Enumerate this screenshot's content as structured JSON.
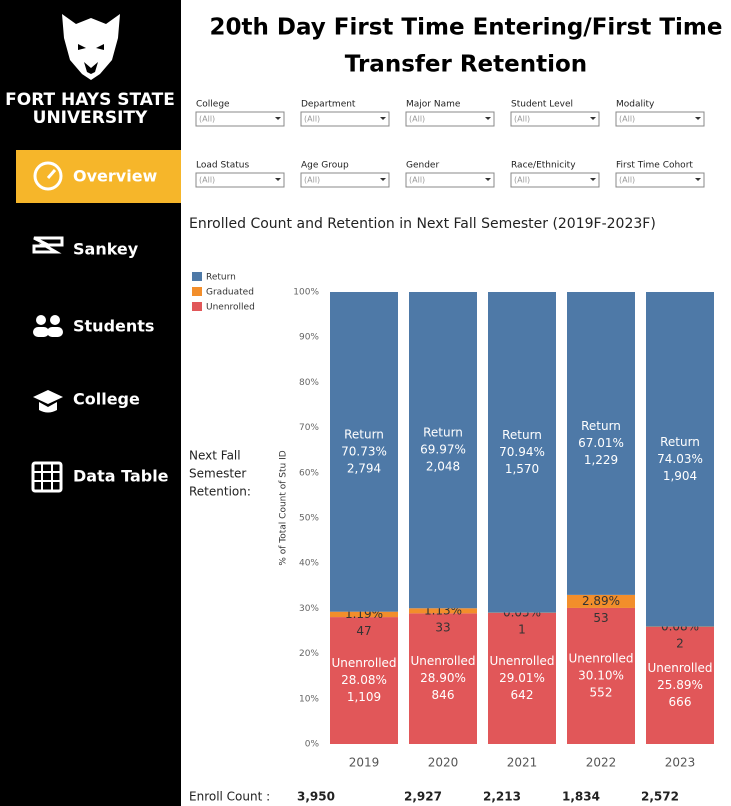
{
  "sidebar": {
    "university": [
      "FORT HAYS STATE",
      "UNIVERSITY"
    ],
    "nav": [
      "Overview",
      "Sankey",
      "Students",
      "College",
      "Data Table"
    ]
  },
  "header": {
    "title": [
      "20th Day First Time Entering/First Time",
      "Transfer Retention"
    ]
  },
  "filters": [
    {
      "label": "College",
      "value": "(All)"
    },
    {
      "label": "Department",
      "value": "(All)"
    },
    {
      "label": "Major Name",
      "value": "(All)"
    },
    {
      "label": "Student Level",
      "value": "(All)"
    },
    {
      "label": "Modality",
      "value": "(All)"
    },
    {
      "label": "Load Status",
      "value": "(All)"
    },
    {
      "label": "Age Group",
      "value": "(All)"
    },
    {
      "label": "Gender",
      "value": "(All)"
    },
    {
      "label": "Race/Ethnicity",
      "value": "(All)"
    },
    {
      "label": "First Time Cohort",
      "value": "(All)"
    }
  ],
  "chart_data": {
    "type": "stacked-bar",
    "title": "Enrolled Count and Retention in Next Fall Semester (2019F-2023F)",
    "row_label": [
      "Next Fall",
      "Semester",
      "Retention:"
    ],
    "y_label": "% of Total Count of Stu ID",
    "categories": [
      "2019",
      "2020",
      "2021",
      "2022",
      "2023"
    ],
    "series": [
      {
        "name": "Unenrolled",
        "color": "#e15759",
        "values": [
          28.08,
          28.9,
          29.01,
          30.1,
          25.89
        ],
        "value_labels": [
          "28.08%",
          "28.90%",
          "29.01%",
          "30.10%",
          "25.89%"
        ],
        "counts": [
          1109,
          846,
          642,
          552,
          666
        ],
        "count_labels": [
          "1,109",
          "846",
          "642",
          "552",
          "666"
        ]
      },
      {
        "name": "Graduated",
        "color": "#f28e2b",
        "values": [
          1.19,
          1.13,
          0.05,
          2.89,
          0.08
        ],
        "value_labels": [
          "1.19%",
          "1.13%",
          "0.05%",
          "2.89%",
          "0.08%"
        ],
        "counts": [
          47,
          33,
          1,
          53,
          2
        ],
        "count_labels": [
          "47",
          "33",
          "1",
          "53",
          "2"
        ]
      },
      {
        "name": "Return",
        "color": "#4e79a7",
        "values": [
          70.73,
          69.97,
          70.94,
          67.01,
          74.03
        ],
        "value_labels": [
          "70.73%",
          "69.97%",
          "70.94%",
          "67.01%",
          "74.03%"
        ],
        "counts": [
          2794,
          2048,
          1570,
          1229,
          1904
        ],
        "count_labels": [
          "2,794",
          "2,048",
          "1,570",
          "1,229",
          "1,904"
        ]
      }
    ],
    "legend_order": [
      2,
      1,
      0
    ],
    "ylim": [
      0,
      100
    ],
    "yticks": [
      {
        "value": 0,
        "label": "0%"
      },
      {
        "value": 10,
        "label": "10%"
      },
      {
        "value": 20,
        "label": "20%"
      },
      {
        "value": 30,
        "label": "30%"
      },
      {
        "value": 40,
        "label": "40%"
      },
      {
        "value": 50,
        "label": "50%"
      },
      {
        "value": 60,
        "label": "60%"
      },
      {
        "value": 70,
        "label": "70%"
      },
      {
        "value": 80,
        "label": "80%"
      },
      {
        "value": 90,
        "label": "90%"
      },
      {
        "value": 100,
        "label": "100%"
      }
    ]
  },
  "enroll_count": {
    "label": "Enroll Count :",
    "values": [
      3950,
      2927,
      2213,
      1834,
      2572
    ],
    "value_labels": [
      "3,950",
      "2,927",
      "2,213",
      "1,834",
      "2,572"
    ]
  }
}
